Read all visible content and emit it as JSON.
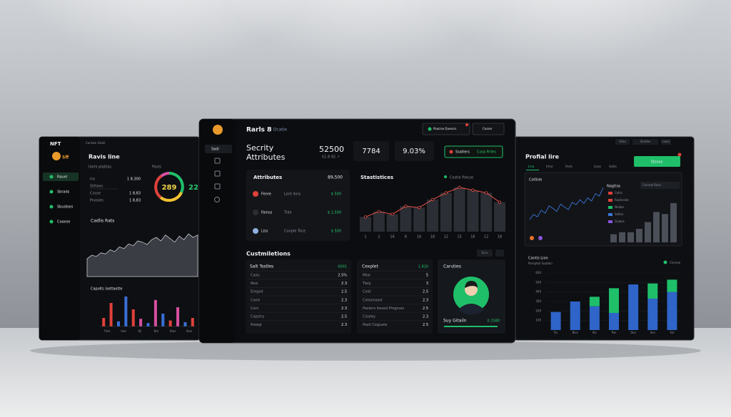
{
  "left": {
    "brand": "NFT",
    "logo": "Sff",
    "crumb": "Contain Diskil",
    "nav": [
      "Rauel",
      "Sbrads",
      "Sbuidses",
      "Coaese"
    ],
    "title": "Ravis line",
    "subtitle": "Ilarhl plalitas",
    "tab": "Pasts",
    "rows": [
      {
        "label": "Ins",
        "value": "1 8,300"
      },
      {
        "label": "Slitlaes"
      },
      {
        "label": "Ccose",
        "value": "1 8,83"
      },
      {
        "label": "Pnosies",
        "value": "1 8,83"
      }
    ],
    "gauge": "289",
    "gauge_side": "22",
    "area_title": "Cadlis Rats",
    "area_values": [
      30,
      36,
      34,
      40,
      38,
      45,
      42,
      50,
      47,
      55,
      52,
      60,
      58,
      54,
      62,
      66,
      60,
      70,
      64,
      58,
      68,
      62,
      72,
      66,
      70
    ],
    "bar_title": "Capolts lsettaotte",
    "bars": {
      "values": [
        20,
        55,
        12,
        70,
        40,
        18,
        8,
        62,
        30,
        14,
        45,
        10,
        20
      ],
      "colors": [
        "#e0413a",
        "#e0413a",
        "#3b6fd8",
        "#3b6fd8",
        "#e0413a",
        "#d64fa0",
        "#3b6fd8",
        "#d64fa0",
        "#3b6fd8",
        "#e0413a",
        "#d64fa0",
        "#3b6fd8",
        "#e0413a"
      ]
    },
    "bar_labels": [
      "Tiels",
      "Inel",
      "Eil",
      "Bnl",
      "Dies",
      "Sles"
    ]
  },
  "center": {
    "nav_active": "Sadi",
    "title": "Rarls 8",
    "subtitle": "l Ocatie",
    "buttons": [
      "Poacise Quessrs",
      "Cosser"
    ],
    "heading": [
      "Secrity",
      "Attributes"
    ],
    "kpi": {
      "value": "52500",
      "note": "€1.8 92 ↗"
    },
    "cards": [
      "7784",
      "9.03%"
    ],
    "action": [
      "Ssaiters",
      "Cosa Rrtes"
    ],
    "attributes": {
      "title": "Attributes",
      "total": "89,500",
      "rows": [
        {
          "name": "Fenre",
          "detail": "Lent liory",
          "value": "$ 500"
        },
        {
          "name": "Fainss",
          "detail": "Tide",
          "value": "$ 2,500"
        },
        {
          "name": "Liss",
          "detail": "Conple Toce",
          "value": "$ 500"
        }
      ]
    },
    "statistics": {
      "title": "Stastistices",
      "legend": "Cestie Plecse",
      "categories": [
        "1",
        "2",
        "16",
        "6",
        "16",
        "18",
        "12",
        "15",
        "16",
        "12",
        "18"
      ],
      "values": [
        22,
        30,
        26,
        38,
        36,
        48,
        58,
        66,
        62,
        58,
        44
      ],
      "color": "#e8524a"
    },
    "section": "Custmiletions",
    "filter": "Sccs",
    "table1": {
      "header": [
        "Salt Tsstles",
        "0001"
      ],
      "rows": [
        [
          "Casic",
          "2.5%"
        ],
        [
          "Resi",
          "2.3"
        ],
        [
          "Ereged",
          "2.5"
        ],
        [
          "Coed",
          "2.3"
        ],
        [
          "Ceni",
          "2.3"
        ],
        [
          "Copstry",
          "2.5"
        ],
        [
          "Rieegi",
          "2.3"
        ]
      ]
    },
    "table2": {
      "header": [
        "Cexplet",
        "1.810"
      ],
      "rows": [
        [
          "Mtal",
          "5"
        ],
        [
          "Tiely",
          "3"
        ],
        [
          "Ceid",
          "2.5"
        ],
        [
          "Catoonaed",
          "2.3"
        ],
        [
          "Pasters Itesed Pregrses",
          "2.5"
        ],
        [
          "Cisaley",
          "2.3"
        ],
        [
          "Pasti Ceguate",
          "2.5"
        ]
      ]
    },
    "profile": {
      "title": "Caruties",
      "name": "Suy Gitailn",
      "value": "0 2580"
    }
  },
  "right": {
    "top_buttons": [
      "Slsts",
      "Sestles",
      "Lsess"
    ],
    "title": "Profial lire",
    "button": "Stsoas",
    "tabs": [
      "Lina",
      "Irtrol",
      "Parts",
      "Lloss",
      "Seilts"
    ],
    "card_title": "Cotlisie",
    "line_values": [
      20,
      28,
      24,
      35,
      30,
      42,
      38,
      33,
      45,
      40,
      36,
      48,
      44,
      52,
      46,
      55,
      50,
      62,
      58,
      72
    ],
    "line_color": "#3a78d8",
    "legend_title": "Nagtisa",
    "legend_head": "Corceal Rans",
    "legend": [
      {
        "name": "Cellis",
        "color": "#e0413a"
      },
      {
        "name": "Roaterate",
        "color": "#e0413a"
      },
      {
        "name": "Nmbie",
        "color": "#1fbf6a"
      },
      {
        "name": "Selllar",
        "color": "#3a78d8"
      },
      {
        "name": "Giabos",
        "color": "#8a55d8"
      }
    ],
    "mini_bars": [
      12,
      15,
      15,
      20,
      30,
      45,
      42,
      58
    ],
    "chart": {
      "type": "bar",
      "title": "Cantis Lion",
      "subtitle": "Pompital Soatlon",
      "categories": [
        "Tsc",
        "Bloc",
        "Stc",
        "Pas",
        "Dos",
        "Ses",
        "Sol"
      ],
      "series": [
        {
          "color": "#2f64c8",
          "values": [
            190,
            300,
            250,
            180,
            480,
            330,
            400
          ]
        },
        {
          "name": "Ctcrese",
          "color": "#1fbf6a",
          "values": [
            0,
            0,
            100,
            260,
            0,
            160,
            130
          ]
        }
      ],
      "ylim": [
        0,
        600
      ],
      "yticks": [
        100,
        200,
        300,
        400,
        500,
        600
      ],
      "grid": true
    }
  }
}
